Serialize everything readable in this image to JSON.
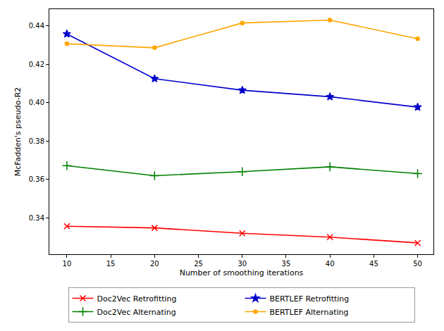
{
  "chart_data": {
    "type": "line",
    "x_label": "Number of smoothing iterations",
    "y_label": "McFadden's pseudo-R2",
    "x": [
      10,
      20,
      30,
      40,
      50
    ],
    "series": [
      {
        "name": "Doc2Vec Retrofitting",
        "color": "#ff0000",
        "marker": "x",
        "values": [
          0.3357,
          0.3348,
          0.332,
          0.33,
          0.327
        ]
      },
      {
        "name": "Doc2Vec Alternating",
        "color": "#008000",
        "marker": "plus",
        "values": [
          0.3672,
          0.362,
          0.3641,
          0.3666,
          0.3631
        ]
      },
      {
        "name": "BERTLEF Retrofitting",
        "color": "#0000cd",
        "marker": "star",
        "values": [
          0.4358,
          0.4125,
          0.4065,
          0.4031,
          0.3977
        ]
      },
      {
        "name": "BERTLEF Alternating",
        "color": "#ffa500",
        "marker": "point",
        "values": [
          0.4307,
          0.4286,
          0.4415,
          0.443,
          0.4333
        ]
      }
    ],
    "xlim": [
      8,
      51.8
    ],
    "xticks": [
      10,
      15,
      20,
      25,
      30,
      35,
      40,
      45,
      50
    ],
    "ylim": [
      0.3211,
      0.4487
    ],
    "yticks": [
      0.34,
      0.36,
      0.38,
      {
        "value": 0.4,
        "label": "0.40"
      },
      0.42,
      0.44
    ],
    "grid": false,
    "legend": "bottom"
  }
}
